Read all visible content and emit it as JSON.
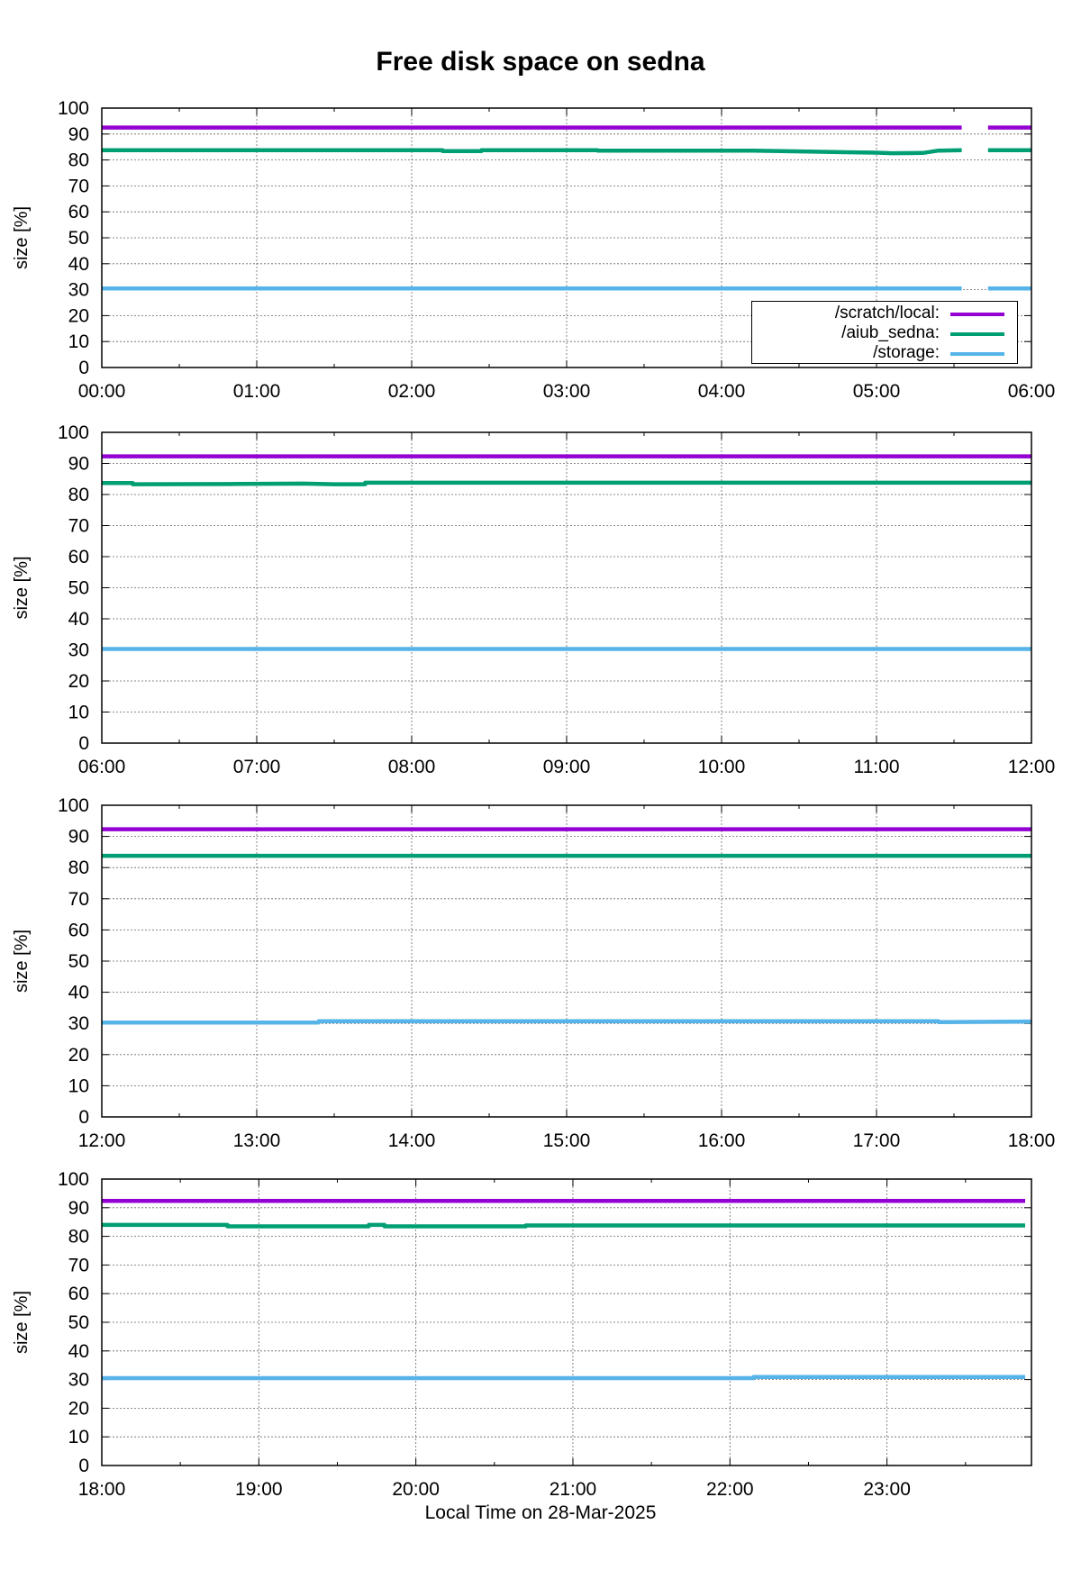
{
  "title": "Free disk space on sedna",
  "xlabel": "Local Time on 28-Mar-2025",
  "colors": {
    "scratch": "#9400d3",
    "aiub": "#009e73",
    "storage": "#56b4e9"
  },
  "chart_data": [
    {
      "type": "line",
      "ylabel": "size [%]",
      "ylim": [
        0,
        100
      ],
      "yticks": [
        "0",
        "10",
        "20",
        "30",
        "40",
        "50",
        "60",
        "70",
        "80",
        "90",
        "100"
      ],
      "xlim": [
        0,
        6
      ],
      "xticks": [
        "00:00",
        "01:00",
        "02:00",
        "03:00",
        "04:00",
        "05:00",
        "06:00"
      ],
      "grid": true,
      "legend_position": "bottom-right",
      "legend": [
        "/scratch/local:",
        "/aiub_sedna:",
        "/storage:"
      ],
      "series": [
        {
          "name": "/scratch/local:",
          "color": "#9400d3",
          "segments": [
            {
              "x": [
                0,
                5.55
              ],
              "y": [
                92.5,
                92.5
              ]
            },
            {
              "x": [
                5.72,
                6
              ],
              "y": [
                92.5,
                92.5
              ]
            }
          ]
        },
        {
          "name": "/aiub_sedna:",
          "color": "#009e73",
          "segments": [
            {
              "x": [
                0,
                2.2,
                2.2,
                2.45,
                2.45,
                3.2,
                3.2,
                4.2,
                4.6,
                4.8,
                5.0,
                5.1,
                5.3,
                5.4,
                5.55
              ],
              "y": [
                83.8,
                83.8,
                83.4,
                83.4,
                83.8,
                83.8,
                83.6,
                83.6,
                83.2,
                83.0,
                82.8,
                82.6,
                82.7,
                83.6,
                83.8
              ]
            },
            {
              "x": [
                5.72,
                6
              ],
              "y": [
                83.8,
                83.8
              ]
            }
          ]
        },
        {
          "name": "/storage:",
          "color": "#56b4e9",
          "segments": [
            {
              "x": [
                0,
                5.55
              ],
              "y": [
                30.5,
                30.5
              ]
            },
            {
              "x": [
                5.72,
                6
              ],
              "y": [
                30.5,
                30.5
              ]
            }
          ]
        }
      ]
    },
    {
      "type": "line",
      "ylabel": "size [%]",
      "ylim": [
        0,
        100
      ],
      "yticks": [
        "0",
        "10",
        "20",
        "30",
        "40",
        "50",
        "60",
        "70",
        "80",
        "90",
        "100"
      ],
      "xlim": [
        6,
        12
      ],
      "xticks": [
        "06:00",
        "07:00",
        "08:00",
        "09:00",
        "10:00",
        "11:00",
        "12:00"
      ],
      "grid": true,
      "series": [
        {
          "name": "/scratch/local:",
          "color": "#9400d3",
          "segments": [
            {
              "x": [
                6,
                12
              ],
              "y": [
                92.3,
                92.3
              ]
            }
          ]
        },
        {
          "name": "/aiub_sedna:",
          "color": "#009e73",
          "segments": [
            {
              "x": [
                6,
                6.2,
                6.2,
                6.9,
                7.3,
                7.5,
                7.7,
                7.7,
                12
              ],
              "y": [
                83.7,
                83.7,
                83.3,
                83.4,
                83.5,
                83.3,
                83.3,
                83.8,
                83.8
              ]
            }
          ]
        },
        {
          "name": "/storage:",
          "color": "#56b4e9",
          "segments": [
            {
              "x": [
                6,
                12
              ],
              "y": [
                30.3,
                30.3
              ]
            }
          ]
        }
      ]
    },
    {
      "type": "line",
      "ylabel": "size [%]",
      "ylim": [
        0,
        100
      ],
      "yticks": [
        "0",
        "10",
        "20",
        "30",
        "40",
        "50",
        "60",
        "70",
        "80",
        "90",
        "100"
      ],
      "xlim": [
        12,
        18
      ],
      "xticks": [
        "12:00",
        "13:00",
        "14:00",
        "15:00",
        "16:00",
        "17:00",
        "18:00"
      ],
      "grid": true,
      "series": [
        {
          "name": "/scratch/local:",
          "color": "#9400d3",
          "segments": [
            {
              "x": [
                12,
                18
              ],
              "y": [
                92.3,
                92.3
              ]
            }
          ]
        },
        {
          "name": "/aiub_sedna:",
          "color": "#009e73",
          "segments": [
            {
              "x": [
                12,
                18
              ],
              "y": [
                83.8,
                83.8
              ]
            }
          ]
        },
        {
          "name": "/storage:",
          "color": "#56b4e9",
          "segments": [
            {
              "x": [
                12,
                13.4,
                13.4,
                17.4,
                17.4,
                18
              ],
              "y": [
                30.3,
                30.3,
                30.7,
                30.7,
                30.4,
                30.6
              ]
            }
          ]
        }
      ]
    },
    {
      "type": "line",
      "ylabel": "size [%]",
      "ylim": [
        0,
        100
      ],
      "yticks": [
        "0",
        "10",
        "20",
        "30",
        "40",
        "50",
        "60",
        "70",
        "80",
        "90",
        "100"
      ],
      "xlim": [
        18,
        23.92
      ],
      "xticks": [
        "18:00",
        "19:00",
        "20:00",
        "21:00",
        "22:00",
        "23:00"
      ],
      "grid": true,
      "series": [
        {
          "name": "/scratch/local:",
          "color": "#9400d3",
          "segments": [
            {
              "x": [
                18,
                23.88
              ],
              "y": [
                92.4,
                92.4
              ]
            }
          ]
        },
        {
          "name": "/aiub_sedna:",
          "color": "#009e73",
          "segments": [
            {
              "x": [
                18,
                18.8,
                18.8,
                19.7,
                19.7,
                19.8,
                19.8,
                20.7,
                20.7,
                23.88
              ],
              "y": [
                84.0,
                84.0,
                83.5,
                83.5,
                84.0,
                84.0,
                83.5,
                83.5,
                83.8,
                83.8
              ]
            }
          ]
        },
        {
          "name": "/storage:",
          "color": "#56b4e9",
          "segments": [
            {
              "x": [
                18,
                22.15,
                22.15,
                23.88
              ],
              "y": [
                30.5,
                30.5,
                30.9,
                30.9
              ]
            }
          ]
        }
      ]
    }
  ]
}
